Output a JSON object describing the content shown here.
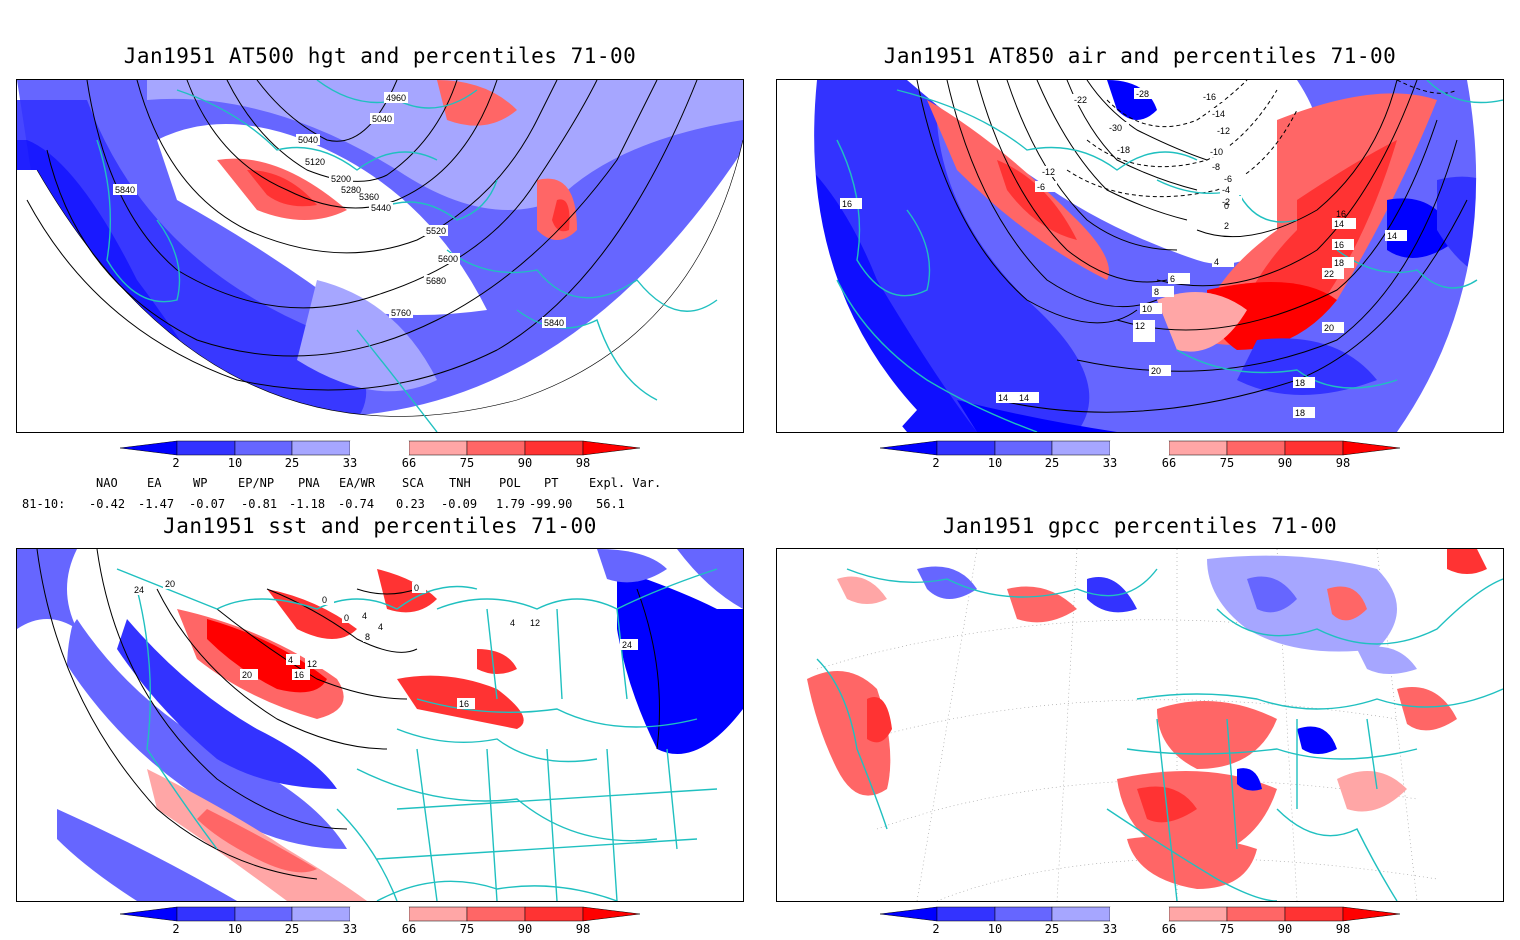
{
  "panels": [
    {
      "title": "Jan1951 AT500 hgt and percentiles 71-00",
      "contour_labels": [
        "4960",
        "5040",
        "5040",
        "5120",
        "5200",
        "5280",
        "5360",
        "5440",
        "5520",
        "5600",
        "5680",
        "5760",
        "5840",
        "5840"
      ]
    },
    {
      "title": "Jan1951 AT850 air and percentiles 71-00",
      "contour_labels": [
        "-22",
        "-28",
        "-16",
        "-14",
        "-12",
        "-10",
        "-8",
        "-6",
        "-4",
        "-2",
        "0",
        "2",
        "4",
        "6",
        "8",
        "10",
        "12",
        "14",
        "14",
        "14",
        "16",
        "16",
        "18",
        "18",
        "20",
        "20",
        "22",
        "16",
        "18",
        "14",
        "-30",
        "-18",
        "-12",
        "-6"
      ]
    },
    {
      "title": "Jan1951 sst and percentiles 71-00",
      "contour_labels": [
        "24",
        "20",
        "0",
        "0",
        "0",
        "4",
        "8",
        "4",
        "4",
        "12",
        "16",
        "20",
        "16",
        "24",
        "12",
        "4"
      ]
    },
    {
      "title": "Jan1951 gpcc percentiles 71-00",
      "contour_labels": []
    }
  ],
  "colorbar": {
    "ticks": [
      "2",
      "10",
      "25",
      "33",
      "66",
      "75",
      "90",
      "98"
    ],
    "colors": {
      "below2": "#0000ff",
      "b2_10": "#3333ff",
      "b10_25": "#6666ff",
      "b25_33": "#a6a6ff",
      "mid": "#ffffff",
      "a66_75": "#ffa6a6",
      "a75_90": "#ff6666",
      "a90_98": "#ff3333",
      "above98": "#ff0000"
    }
  },
  "indices": {
    "headers": [
      "NAO",
      "EA",
      "WP",
      "EP/NP",
      "PNA",
      "EA/WR",
      "SCA",
      "TNH",
      "POL",
      "PT",
      "Expl. Var."
    ],
    "row_label": "81-10:",
    "values": [
      "-0.42",
      "-1.47",
      "-0.07",
      "-0.81",
      "-1.18",
      "-0.74",
      "0.23",
      "-0.09",
      "1.79",
      "-99.90",
      "56.1"
    ]
  },
  "colors": {
    "coast": "#20c0c0",
    "contour": "#000000"
  }
}
